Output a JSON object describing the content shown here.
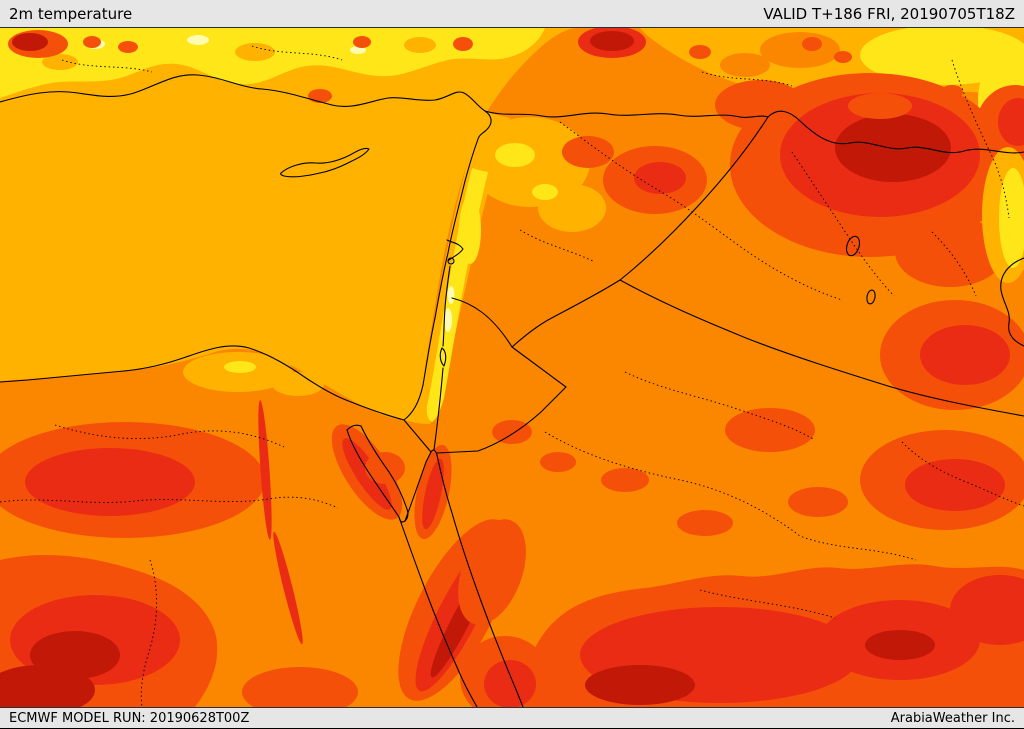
{
  "header": {
    "title": "2m temperature",
    "valid": "VALID T+186 FRI, 20190705T18Z"
  },
  "footer": {
    "model_run": "ECMWF MODEL RUN: 20190628T00Z",
    "credit": "ArabiaWeather Inc."
  },
  "palette": {
    "pale_yellow": "#FFFBB0",
    "yellow": "#FFE619",
    "gold": "#FFB300",
    "orange": "#FB8700",
    "red_orange": "#F4500A",
    "red": "#EA2C14",
    "dark_red": "#C21807",
    "line": "#000000",
    "bar_bg": "#E6E6E6"
  }
}
